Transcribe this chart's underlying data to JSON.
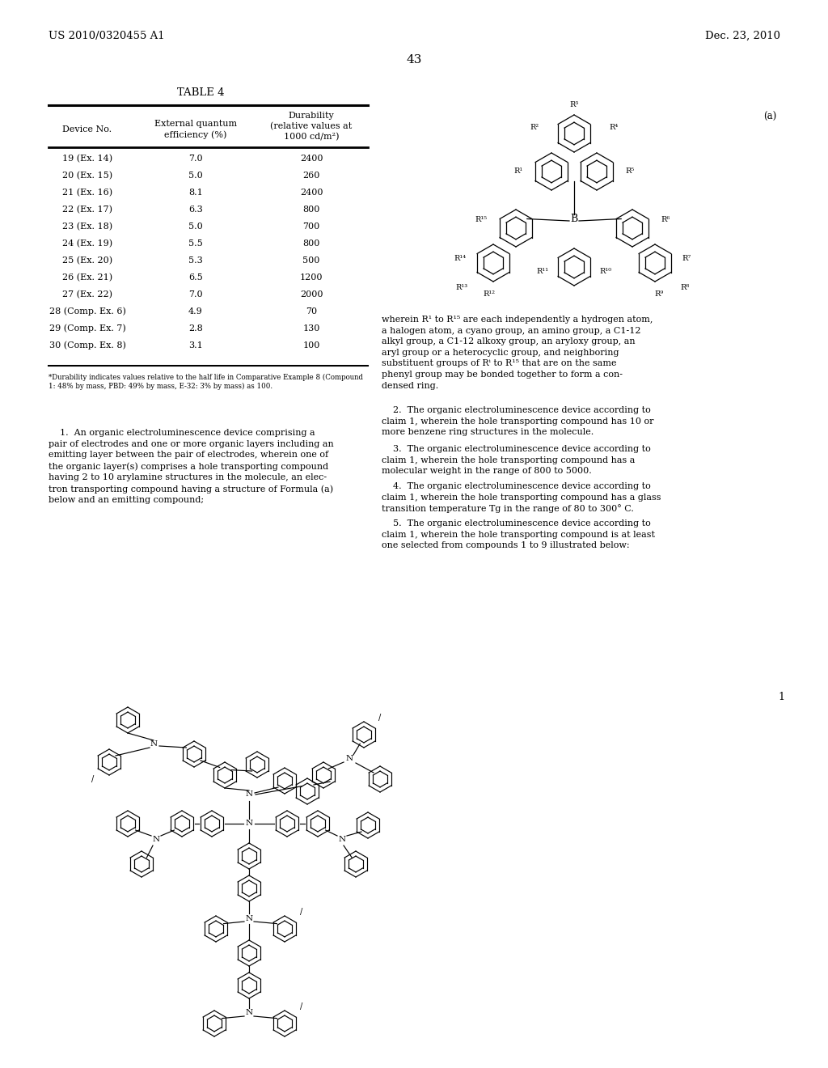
{
  "bg_color": "#ffffff",
  "header_left": "US 2010/0320455 A1",
  "header_right": "Dec. 23, 2010",
  "page_number": "43",
  "table_title": "TABLE 4",
  "table_rows": [
    [
      "19 (Ex. 14)",
      "7.0",
      "2400"
    ],
    [
      "20 (Ex. 15)",
      "5.0",
      "260"
    ],
    [
      "21 (Ex. 16)",
      "8.1",
      "2400"
    ],
    [
      "22 (Ex. 17)",
      "6.3",
      "800"
    ],
    [
      "23 (Ex. 18)",
      "5.0",
      "700"
    ],
    [
      "24 (Ex. 19)",
      "5.5",
      "800"
    ],
    [
      "25 (Ex. 20)",
      "5.3",
      "500"
    ],
    [
      "26 (Ex. 21)",
      "6.5",
      "1200"
    ],
    [
      "27 (Ex. 22)",
      "7.0",
      "2000"
    ],
    [
      "28 (Comp. Ex. 6)",
      "4.9",
      "70"
    ],
    [
      "29 (Comp. Ex. 7)",
      "2.8",
      "130"
    ],
    [
      "30 (Comp. Ex. 8)",
      "3.1",
      "100"
    ]
  ],
  "formula_label": "(a)",
  "compound_label": "1"
}
